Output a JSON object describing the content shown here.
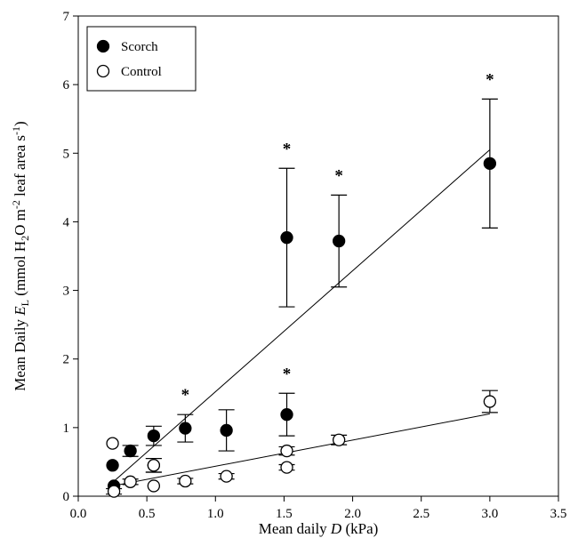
{
  "chart_data": {
    "type": "scatter",
    "xlabel": {
      "prefix": "Mean daily ",
      "var": "D",
      "suffix": " (kPa)"
    },
    "ylabel": {
      "prefix": "Mean Daily ",
      "var": "E",
      "sub": "L",
      "mid": " (mmol H",
      "sub2": "2",
      "mid2": "O m",
      "sup": "-2",
      "tail": " leaf area s",
      "sup2": "-1",
      "end": ")"
    },
    "xlim": [
      0,
      3.5
    ],
    "ylim": [
      0,
      7
    ],
    "x_ticks": [
      "0.0",
      "0.5",
      "1.0",
      "1.5",
      "2.0",
      "2.5",
      "3.0",
      "3.5"
    ],
    "y_ticks": [
      "0",
      "1",
      "2",
      "3",
      "4",
      "5",
      "6",
      "7"
    ],
    "grid": false,
    "legend": {
      "placement": "top-left",
      "entries": [
        "Scorch",
        "Control"
      ]
    },
    "series": [
      {
        "name": "Scorch",
        "marker": "filled-circle",
        "color": "#000000",
        "points": [
          {
            "x": 0.25,
            "y": 0.45,
            "err": null
          },
          {
            "x": 0.26,
            "y": 0.15,
            "err": null
          },
          {
            "x": 0.38,
            "y": 0.66,
            "err": 0.08
          },
          {
            "x": 0.55,
            "y": 0.88,
            "err": 0.14
          },
          {
            "x": 0.55,
            "y": 0.45,
            "err": 0.1
          },
          {
            "x": 0.78,
            "y": 0.99,
            "err": 0.2,
            "sig": true
          },
          {
            "x": 1.08,
            "y": 0.96,
            "err": 0.3
          },
          {
            "x": 1.52,
            "y": 1.19,
            "err": 0.31,
            "sig": true
          },
          {
            "x": 1.52,
            "y": 3.77,
            "err": 1.01,
            "sig": true
          },
          {
            "x": 1.9,
            "y": 3.72,
            "err": 0.67,
            "sig": true
          },
          {
            "x": 3.0,
            "y": 4.85,
            "err": 0.94,
            "sig": true
          }
        ],
        "fit": [
          [
            0.25,
            0.2
          ],
          [
            3.0,
            5.05
          ]
        ]
      },
      {
        "name": "Control",
        "marker": "open-circle",
        "color": "#000000",
        "points": [
          {
            "x": 0.25,
            "y": 0.77,
            "err": null
          },
          {
            "x": 0.26,
            "y": 0.07,
            "err": 0.04
          },
          {
            "x": 0.38,
            "y": 0.21,
            "err": 0.04
          },
          {
            "x": 0.55,
            "y": 0.45,
            "err": 0.1
          },
          {
            "x": 0.55,
            "y": 0.15,
            "err": null
          },
          {
            "x": 0.78,
            "y": 0.22,
            "err": 0.04
          },
          {
            "x": 1.08,
            "y": 0.29,
            "err": 0.04
          },
          {
            "x": 1.52,
            "y": 0.66,
            "err": 0.06
          },
          {
            "x": 1.52,
            "y": 0.42,
            "err": 0.04
          },
          {
            "x": 1.9,
            "y": 0.82,
            "err": 0.07
          },
          {
            "x": 3.0,
            "y": 1.38,
            "err": 0.16
          }
        ],
        "fit": [
          [
            0.25,
            0.15
          ],
          [
            3.0,
            1.2
          ]
        ]
      }
    ],
    "annotations": [
      "*",
      "*",
      "*",
      "*",
      "*"
    ]
  }
}
